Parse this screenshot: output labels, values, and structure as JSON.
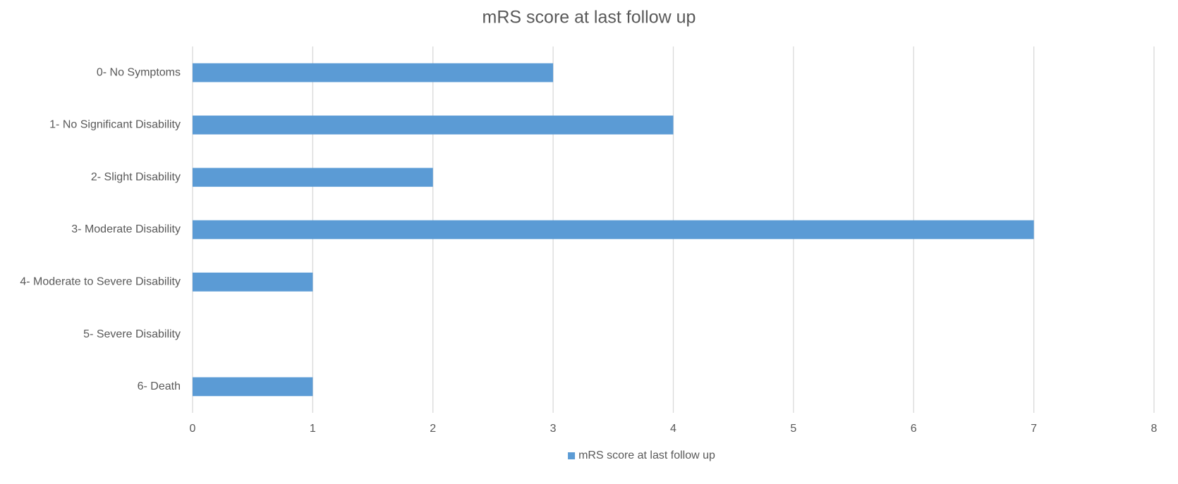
{
  "chart_data": {
    "type": "bar",
    "title": "mRS score at last follow up",
    "categories": [
      "0- No Symptoms",
      "1- No Significant Disability",
      "2- Slight Disability",
      "3- Moderate Disability",
      "4- Moderate to Severe Disability",
      "5- Severe Disability",
      "6- Death"
    ],
    "series": [
      {
        "name": "mRS score at last follow up",
        "color": "#5b9bd5",
        "values": [
          3,
          4,
          2,
          7,
          1,
          0,
          1
        ]
      }
    ],
    "xlim": [
      0,
      8
    ],
    "xticks": [
      0,
      1,
      2,
      3,
      4,
      5,
      6,
      7,
      8
    ],
    "grid": true,
    "legend": "bottom"
  }
}
